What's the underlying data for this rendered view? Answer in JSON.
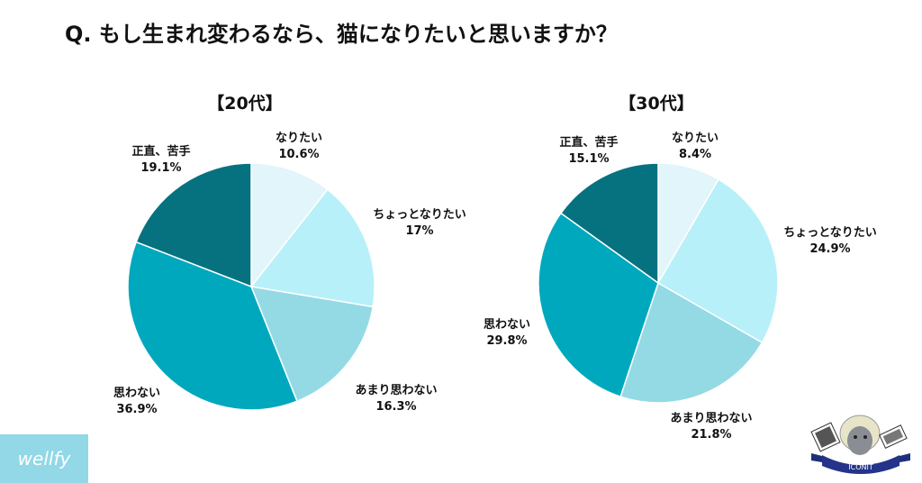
{
  "title": "Q. もし生まれ変わるなら、猫になりたいと思いますか？",
  "colors": [
    "#e1f5fa",
    "#b8f0f9",
    "#93dae5",
    "#00a8bd",
    "#067280"
  ],
  "chart_data": [
    {
      "type": "pie",
      "title": "【20代】",
      "start": "12 o'clock, clockwise",
      "categories": [
        "なりたい",
        "ちょっとなりたい",
        "あまり思わない",
        "思わない",
        "正直、苦手"
      ],
      "values": [
        10.6,
        17,
        16.3,
        36.9,
        19.1
      ],
      "value_labels": [
        "10.6%",
        "17%",
        "16.3%",
        "36.9%",
        "19.1%"
      ]
    },
    {
      "type": "pie",
      "title": "【30代】",
      "start": "12 o'clock, clockwise",
      "categories": [
        "なりたい",
        "ちょっとなりたい",
        "あまり思わない",
        "思わない",
        "正直、苦手"
      ],
      "values": [
        8.4,
        24.9,
        21.8,
        29.8,
        15.1
      ],
      "value_labels": [
        "8.4%",
        "24.9%",
        "21.8%",
        "29.8%",
        "15.1%"
      ]
    }
  ],
  "logos": {
    "left": "wellfy",
    "right": "ICONIT"
  }
}
